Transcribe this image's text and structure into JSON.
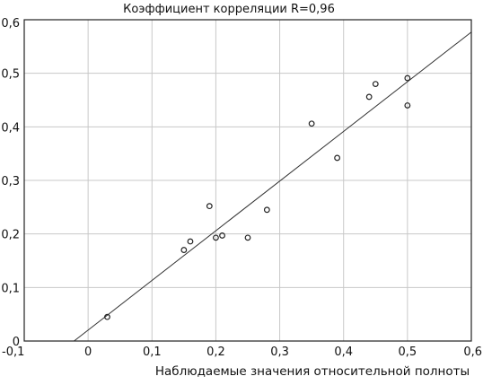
{
  "chart_data": {
    "type": "scatter",
    "title": "Коэффициент корреляции R=0,96",
    "xlabel": "Наблюдаемые значения относительной полноты",
    "ylabel": "",
    "xlim": [
      -0.1,
      0.6
    ],
    "ylim": [
      0,
      0.6
    ],
    "grid": true,
    "decimal_separator": ",",
    "x_ticks": [
      {
        "value": -0.1,
        "label": "-0,1"
      },
      {
        "value": 0,
        "label": "0"
      },
      {
        "value": 0.1,
        "label": "0,1"
      },
      {
        "value": 0.2,
        "label": "0,2"
      },
      {
        "value": 0.3,
        "label": "0,3"
      },
      {
        "value": 0.4,
        "label": "0,4"
      },
      {
        "value": 0.5,
        "label": "0,5"
      },
      {
        "value": 0.6,
        "label": "0,6"
      }
    ],
    "y_ticks": [
      {
        "value": 0,
        "label": "0"
      },
      {
        "value": 0.1,
        "label": "0,1"
      },
      {
        "value": 0.2,
        "label": "0,2"
      },
      {
        "value": 0.3,
        "label": "0,3"
      },
      {
        "value": 0.4,
        "label": "0,4"
      },
      {
        "value": 0.5,
        "label": "0,5"
      },
      {
        "value": 0.6,
        "label": "0,6"
      }
    ],
    "points": [
      {
        "x": 0.03,
        "y": 0.045
      },
      {
        "x": 0.15,
        "y": 0.17
      },
      {
        "x": 0.16,
        "y": 0.186
      },
      {
        "x": 0.19,
        "y": 0.252
      },
      {
        "x": 0.2,
        "y": 0.193
      },
      {
        "x": 0.21,
        "y": 0.197
      },
      {
        "x": 0.25,
        "y": 0.193
      },
      {
        "x": 0.28,
        "y": 0.245
      },
      {
        "x": 0.35,
        "y": 0.406
      },
      {
        "x": 0.39,
        "y": 0.342
      },
      {
        "x": 0.44,
        "y": 0.456
      },
      {
        "x": 0.45,
        "y": 0.48
      },
      {
        "x": 0.5,
        "y": 0.491
      },
      {
        "x": 0.5,
        "y": 0.44
      }
    ],
    "fit_line": {
      "x": [
        -0.022,
        0.6
      ],
      "y": [
        0,
        0.577
      ]
    }
  }
}
